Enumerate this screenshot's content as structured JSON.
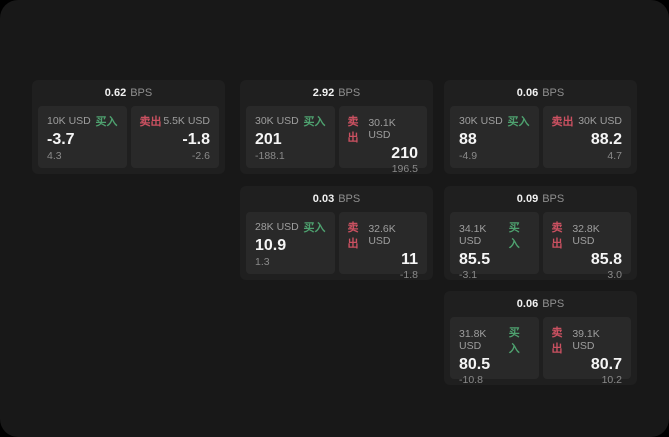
{
  "labels": {
    "bps_unit": "BPS",
    "buy": "买入",
    "sell": "卖出"
  },
  "colors": {
    "buy_green": "#4ea16f",
    "sell_red": "#cb5161",
    "page_bg": "#181818",
    "card_bg": "#1f1f1f",
    "panel_bg": "#292929"
  },
  "cards": [
    {
      "bps": "0.62",
      "buy": {
        "amount": "10K USD",
        "price": "-3.7",
        "sub": "4.3"
      },
      "sell": {
        "amount": "5.5K USD",
        "price": "-1.8",
        "sub": "-2.6"
      }
    },
    {
      "bps": "2.92",
      "buy": {
        "amount": "30K USD",
        "price": "201",
        "sub": "-188.1"
      },
      "sell": {
        "amount": "30.1K USD",
        "price": "210",
        "sub": "196.5"
      }
    },
    {
      "bps": "0.06",
      "buy": {
        "amount": "30K USD",
        "price": "88",
        "sub": "-4.9"
      },
      "sell": {
        "amount": "30K USD",
        "price": "88.2",
        "sub": "4.7"
      }
    },
    {
      "bps": "0.03",
      "buy": {
        "amount": "28K USD",
        "price": "10.9",
        "sub": "1.3"
      },
      "sell": {
        "amount": "32.6K USD",
        "price": "11",
        "sub": "-1.8"
      }
    },
    {
      "bps": "0.09",
      "buy": {
        "amount": "34.1K USD",
        "price": "85.5",
        "sub": "-3.1"
      },
      "sell": {
        "amount": "32.8K USD",
        "price": "85.8",
        "sub": "3.0"
      }
    },
    {
      "bps": "0.06",
      "buy": {
        "amount": "31.8K USD",
        "price": "80.5",
        "sub": "-10.8"
      },
      "sell": {
        "amount": "39.1K USD",
        "price": "80.7",
        "sub": "10.2"
      }
    }
  ]
}
